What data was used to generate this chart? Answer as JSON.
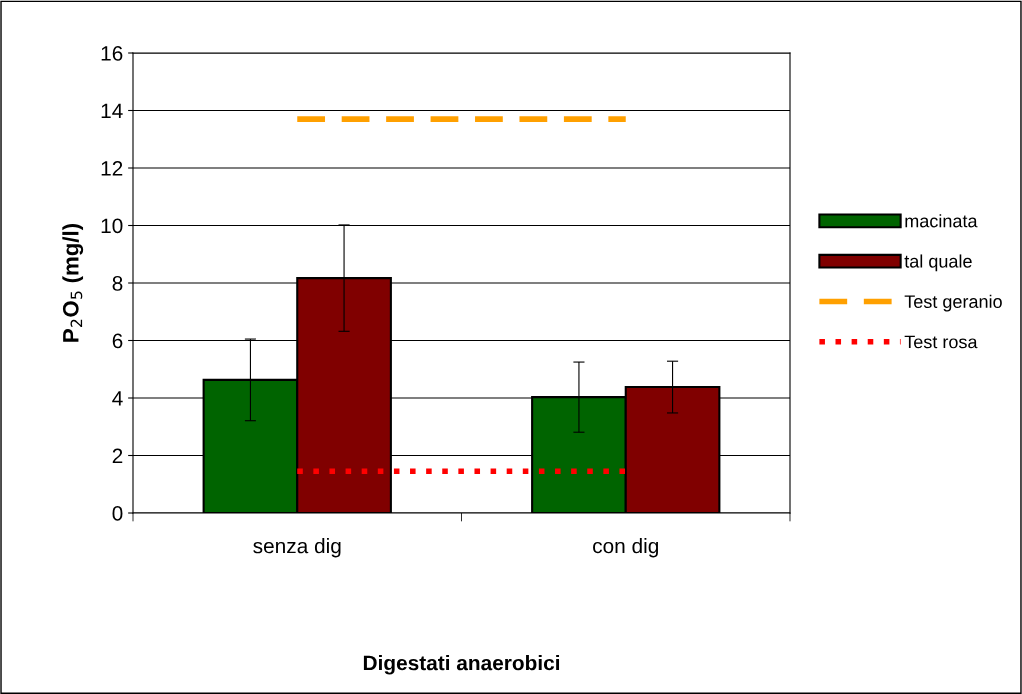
{
  "chart_data": {
    "type": "bar",
    "xlabel": "Digestati anaerobici",
    "ylabel": "P$_{2}$O$_{5}$ (mg/l)",
    "categories": [
      "senza dig",
      "con dig"
    ],
    "ylim": [
      0,
      16
    ],
    "yticks": [
      0,
      2,
      4,
      6,
      8,
      10,
      12,
      14,
      16
    ],
    "grid": "y",
    "legend": "right",
    "series": [
      {
        "name": "macinata",
        "color": "#006400",
        "values": [
          4.63,
          4.03
        ],
        "errors": [
          1.42,
          1.22
        ]
      },
      {
        "name": "tal quale",
        "color": "#800000",
        "values": [
          8.17,
          4.38
        ],
        "errors": [
          1.85,
          0.9
        ]
      },
      {
        "name": "Test geranio",
        "type": "line",
        "color": "#ffa000",
        "line_style": "dashed",
        "values": [
          13.7,
          13.7
        ]
      },
      {
        "name": "Test rosa",
        "type": "line",
        "color": "#ff0000",
        "line_style": "dotted",
        "values": [
          1.45,
          1.45
        ]
      }
    ]
  }
}
